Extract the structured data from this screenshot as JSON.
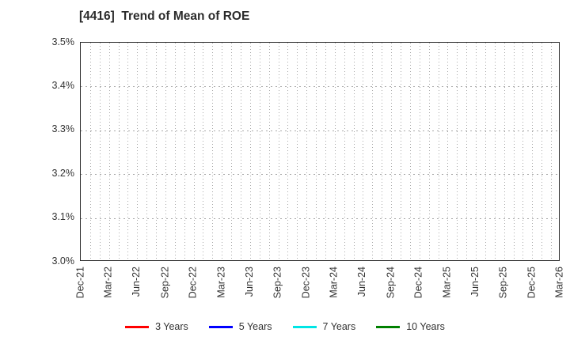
{
  "title": "[4416]  Trend of Mean of ROE",
  "chart_data": {
    "type": "line",
    "title": "[4416]  Trend of Mean of ROE",
    "xlabel": "",
    "ylabel": "",
    "x_tick_labels": [
      "Dec-21",
      "Mar-22",
      "Jun-22",
      "Sep-22",
      "Dec-22",
      "Mar-23",
      "Jun-23",
      "Sep-23",
      "Dec-23",
      "Mar-24",
      "Jun-24",
      "Sep-24",
      "Dec-24",
      "Mar-25",
      "Jun-25",
      "Sep-25",
      "Dec-25",
      "Mar-26"
    ],
    "y_tick_labels": [
      "3.5%",
      "3.4%",
      "3.3%",
      "3.2%",
      "3.1%",
      "3.0%"
    ],
    "ylim": [
      3.0,
      3.5
    ],
    "y_step": 0.1,
    "y_unit": "%",
    "grid": true,
    "x_minor_gridlines_per_label_interval": 3,
    "legend_position": "bottom",
    "series": [
      {
        "name": "3 Years",
        "color": "#ff0000",
        "values": []
      },
      {
        "name": "5 Years",
        "color": "#0000ff",
        "values": []
      },
      {
        "name": "7 Years",
        "color": "#00e5e5",
        "values": []
      },
      {
        "name": "10 Years",
        "color": "#008000",
        "values": []
      }
    ]
  }
}
